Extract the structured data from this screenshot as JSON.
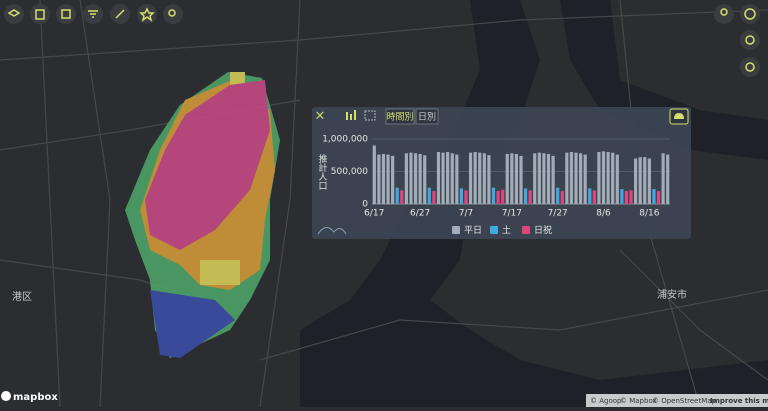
{
  "map_labels": [
    "港区",
    "浦安市"
  ],
  "panel": {
    "tabs": [
      "時間別",
      "日別"
    ]
  },
  "chart_data": {
    "type": "bar",
    "y_label": "推計人口",
    "categories": [
      "6/17",
      null,
      null,
      null,
      null,
      null,
      null,
      null,
      null,
      null,
      "6/27",
      null,
      null,
      null,
      null,
      null,
      null,
      null,
      null,
      null,
      "7/7",
      null,
      null,
      null,
      null,
      null,
      null,
      null,
      null,
      null,
      "7/17",
      null,
      null,
      null,
      null,
      null,
      null,
      null,
      null,
      null,
      "7/27",
      null,
      null,
      null,
      null,
      null,
      null,
      null,
      null,
      null,
      "8/6",
      null,
      null,
      null,
      null,
      null,
      null,
      null,
      null,
      null,
      "8/16",
      null,
      null,
      null,
      null
    ],
    "series": [
      {
        "name": "平日",
        "color": "#a3adb8",
        "values": [
          900000,
          760000,
          770000,
          760000,
          740000,
          null,
          null,
          780000,
          790000,
          780000,
          770000,
          750000,
          null,
          null,
          800000,
          790000,
          800000,
          780000,
          760000,
          null,
          null,
          790000,
          800000,
          790000,
          780000,
          750000,
          null,
          null,
          null,
          770000,
          780000,
          770000,
          740000,
          null,
          null,
          780000,
          790000,
          780000,
          770000,
          740000,
          null,
          null,
          790000,
          800000,
          790000,
          780000,
          760000,
          null,
          null,
          800000,
          810000,
          800000,
          790000,
          760000,
          null,
          null,
          null,
          700000,
          720000,
          720000,
          700000,
          null,
          null,
          780000,
          760000
        ]
      },
      {
        "name": "土",
        "color": "#3fa9e0",
        "values": [
          null,
          null,
          null,
          null,
          null,
          250000,
          null,
          null,
          null,
          null,
          null,
          null,
          250000,
          null,
          null,
          null,
          null,
          null,
          null,
          240000,
          null,
          null,
          null,
          null,
          null,
          null,
          250000,
          null,
          null,
          null,
          null,
          null,
          null,
          240000,
          null,
          null,
          null,
          null,
          null,
          null,
          250000,
          null,
          null,
          null,
          null,
          null,
          null,
          240000,
          null,
          null,
          null,
          null,
          null,
          null,
          230000,
          null,
          null,
          null,
          null,
          null,
          null,
          230000,
          null,
          null,
          null
        ]
      },
      {
        "name": "日祝",
        "color": "#e0457b",
        "values": [
          null,
          null,
          null,
          null,
          null,
          null,
          210000,
          null,
          null,
          null,
          null,
          null,
          null,
          200000,
          null,
          null,
          null,
          null,
          null,
          null,
          210000,
          null,
          null,
          null,
          null,
          null,
          null,
          200000,
          220000,
          null,
          null,
          null,
          null,
          null,
          210000,
          null,
          null,
          null,
          null,
          null,
          null,
          200000,
          null,
          null,
          null,
          null,
          null,
          null,
          210000,
          null,
          null,
          null,
          null,
          null,
          null,
          200000,
          210000,
          null,
          null,
          null,
          null,
          null,
          200000,
          null,
          null
        ]
      }
    ],
    "ylim": [
      0,
      1000000
    ],
    "yticks": [
      0,
      {
        "value": 500000,
        "label": "500,000"
      },
      {
        "value": 1000000,
        "label": "1,000,000"
      }
    ],
    "grid": true
  },
  "attribution": {
    "logo": "mapbox",
    "links": [
      "© Agoop",
      "© Mapbox",
      "© OpenStreetMap",
      "Improve this map"
    ]
  }
}
